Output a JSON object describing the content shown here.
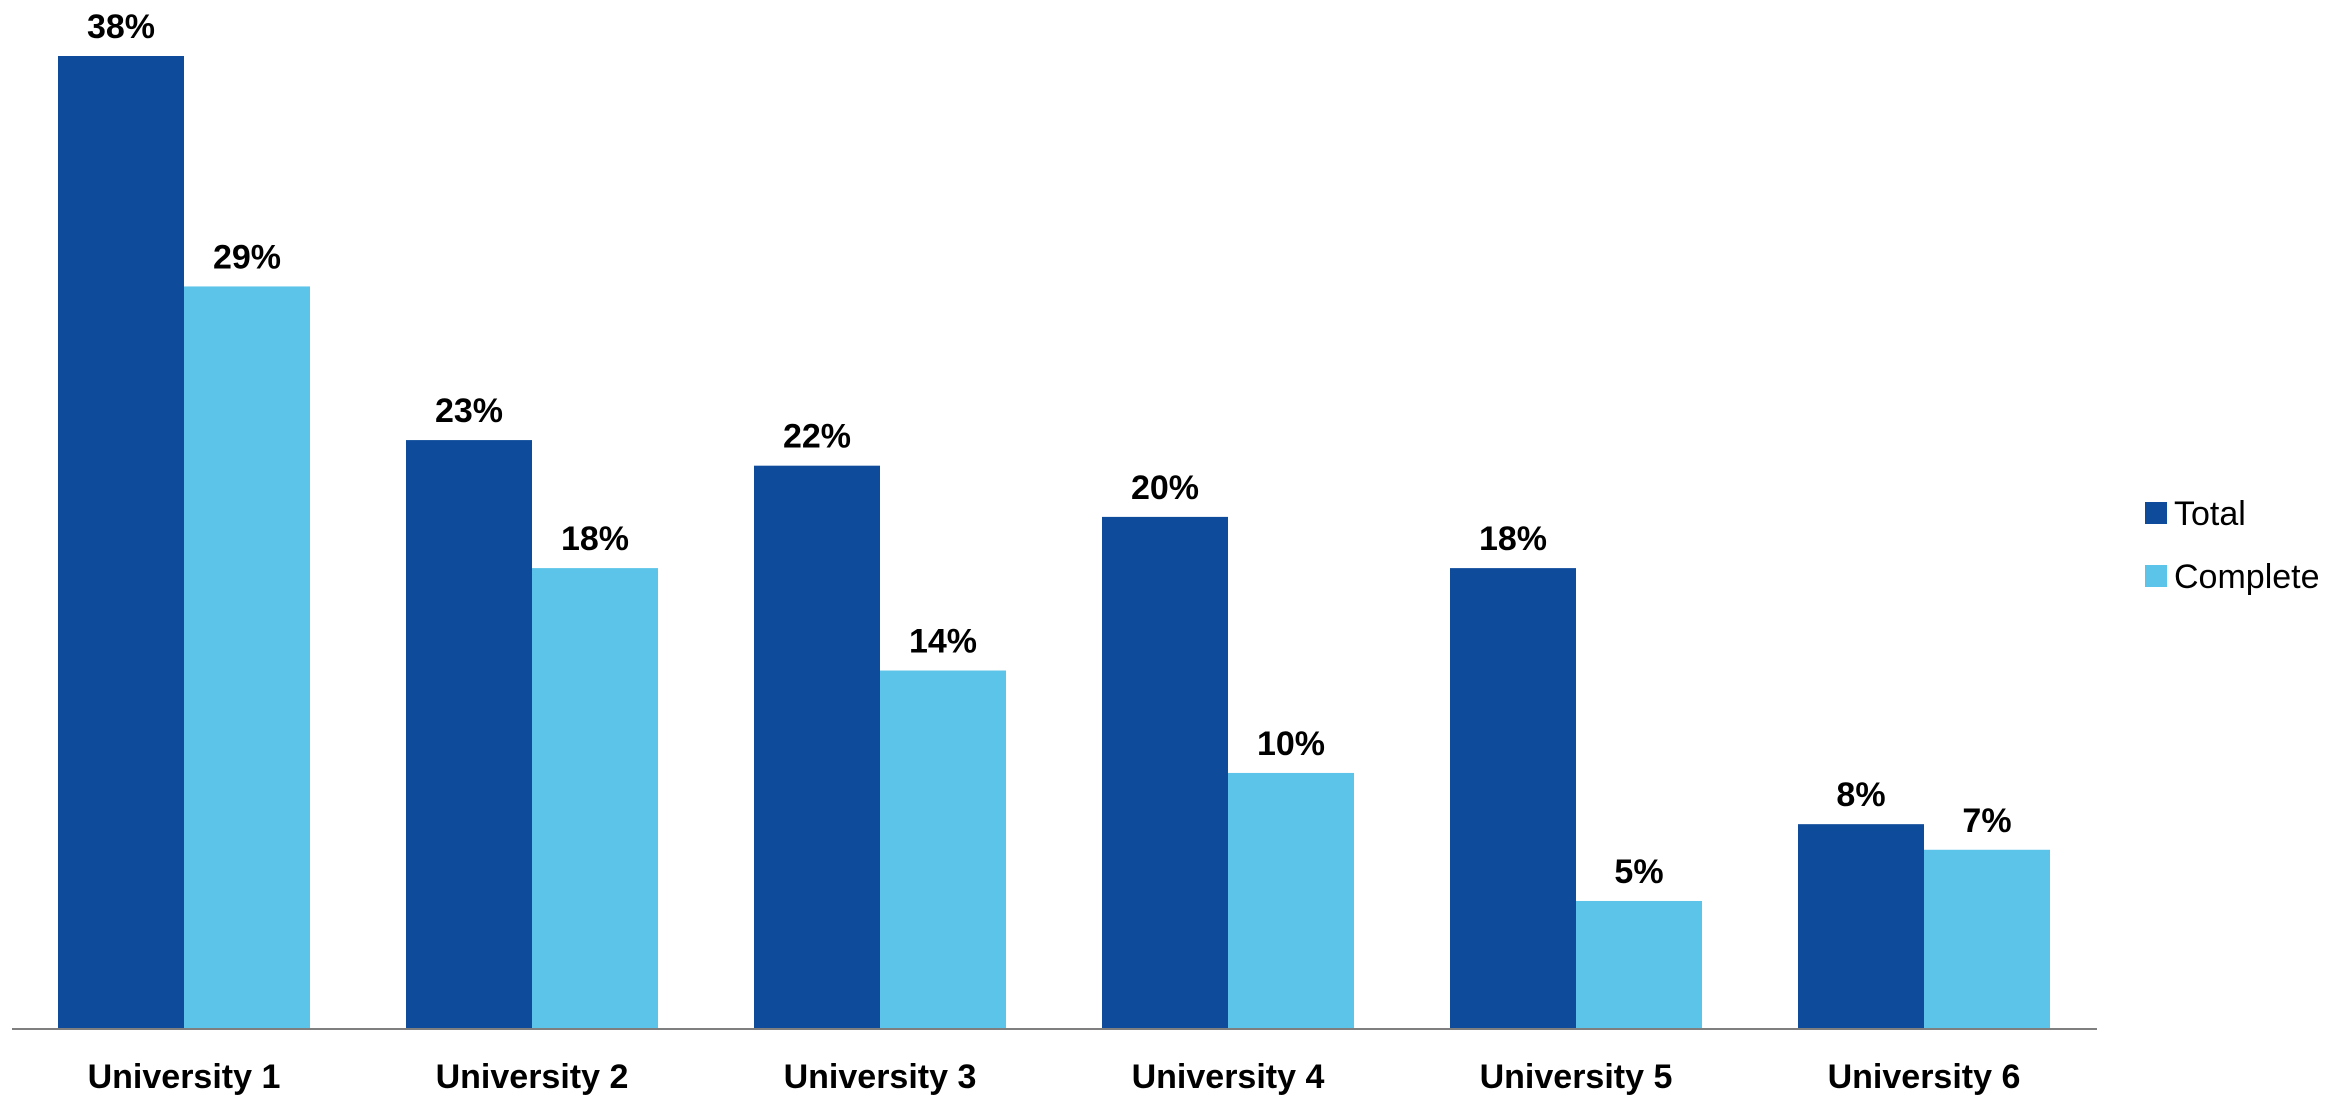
{
  "chart_data": {
    "type": "bar",
    "categories": [
      "University 1",
      "University 2",
      "University 3",
      "University 4",
      "University 5",
      "University 6"
    ],
    "series": [
      {
        "name": "Total",
        "values": [
          38,
          23,
          22,
          20,
          18,
          8
        ],
        "color": "#0E4C9B"
      },
      {
        "name": "Complete",
        "values": [
          29,
          18,
          14,
          10,
          5,
          7
        ],
        "color": "#5BC4E8"
      }
    ],
    "value_suffix": "%",
    "title": "",
    "xlabel": "",
    "ylabel": "",
    "ylim": [
      0,
      38
    ],
    "grid": false,
    "legend_position": "right"
  }
}
